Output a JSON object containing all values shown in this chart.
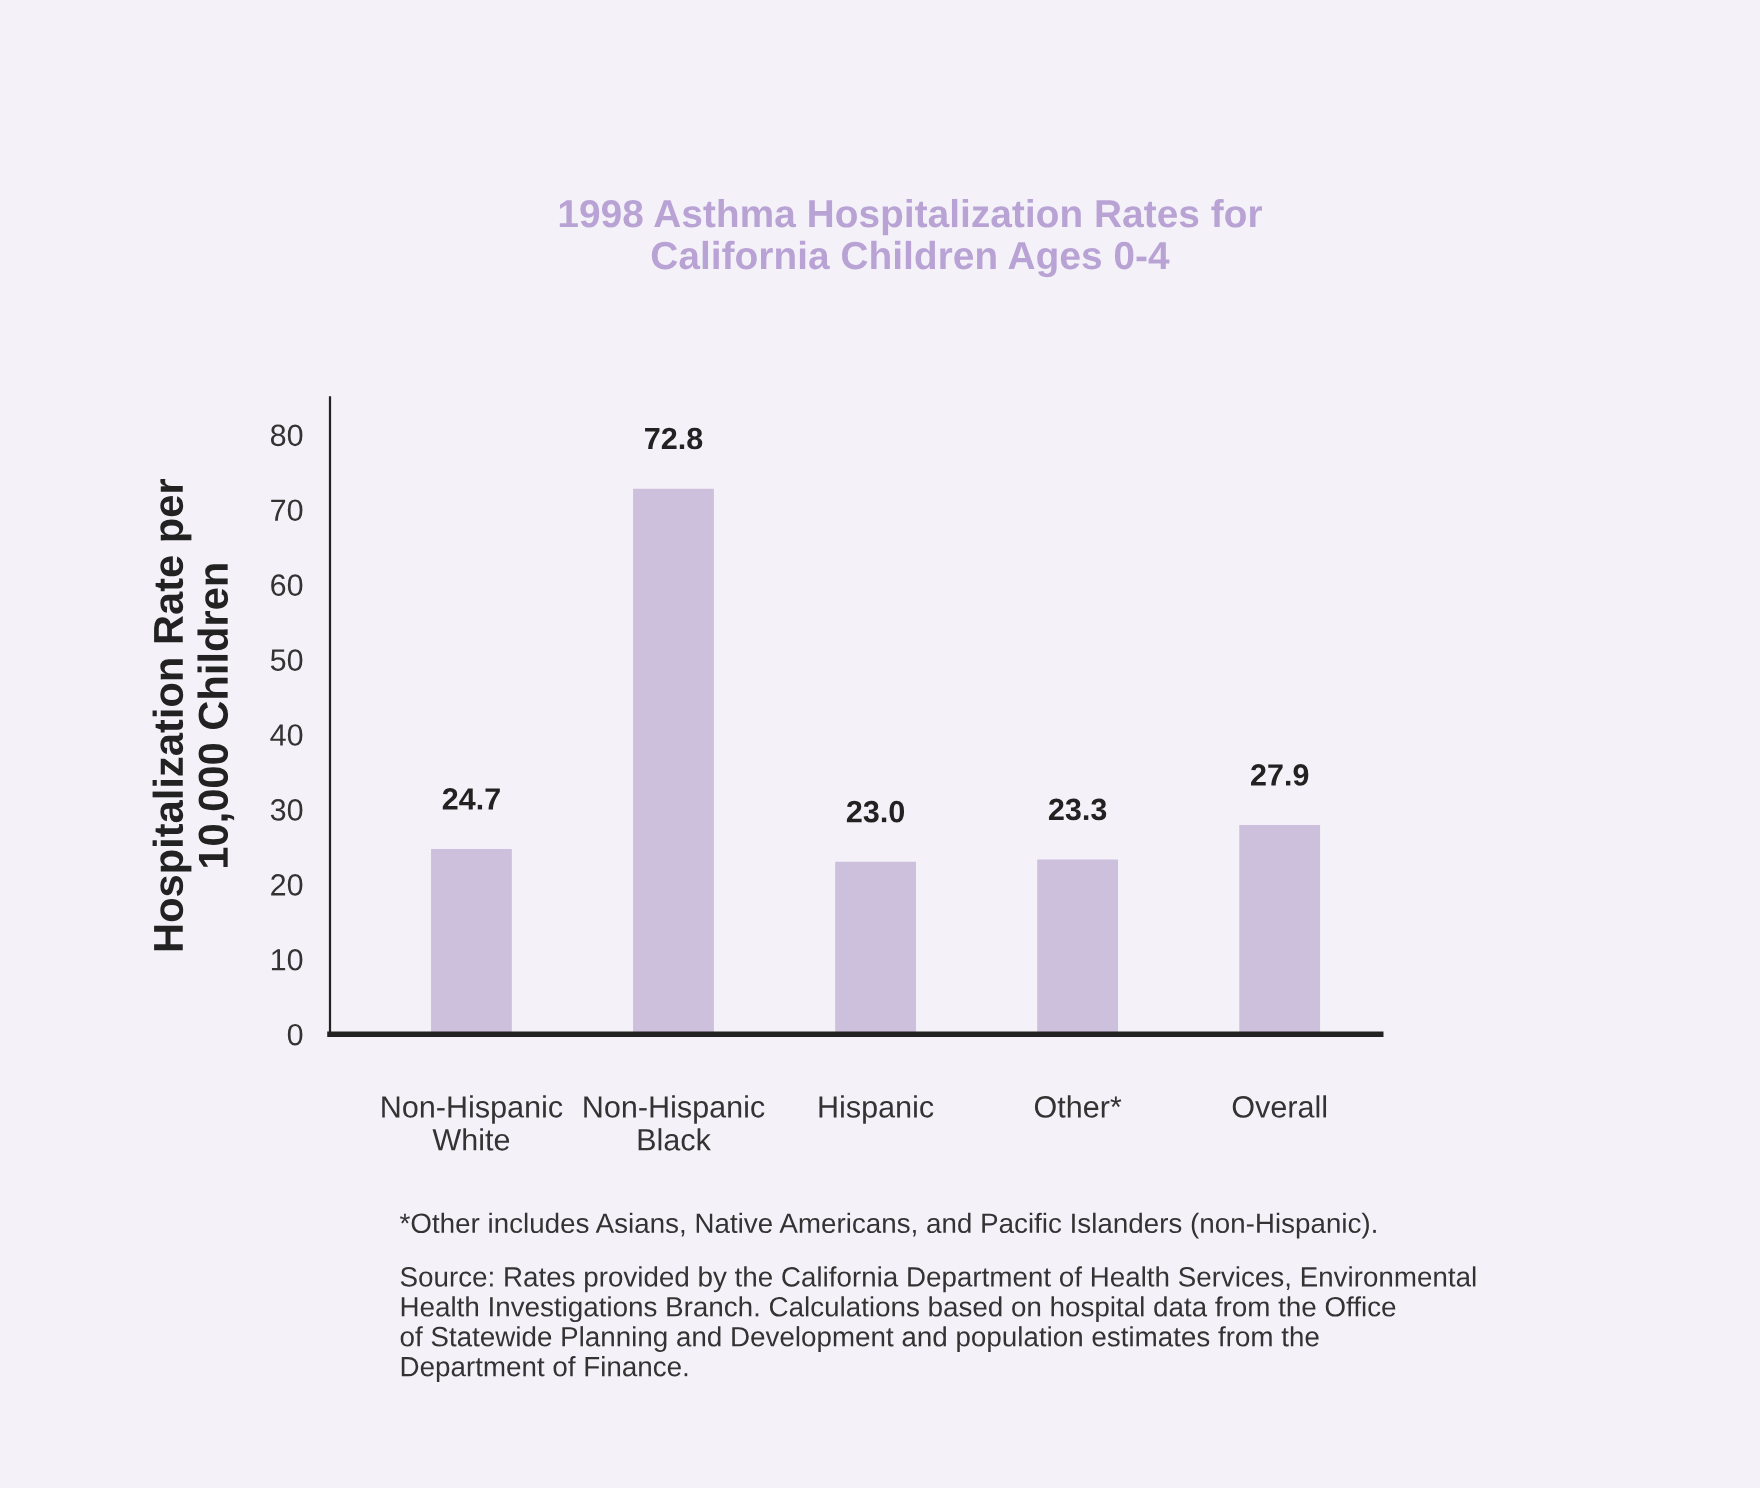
{
  "chart_data": {
    "type": "bar",
    "title": "1998 Asthma Hospitalization Rates for\nCalifornia Children Ages 0-4",
    "ylabel": "Hospitalization Rate per\n10,000 Children",
    "categories": [
      "Non-Hispanic\nWhite",
      "Non-Hispanic\nBlack",
      "Hispanic",
      "Other*",
      "Overall"
    ],
    "values": [
      24.7,
      72.8,
      23.0,
      23.3,
      27.9
    ],
    "color": "#cdc0dd",
    "ylim": [
      0,
      85
    ],
    "yticks": [
      0,
      10,
      20,
      30,
      40,
      50,
      60,
      70,
      80
    ],
    "value_labels": [
      "24.7",
      "72.8",
      "23.0",
      "23.3",
      "27.9"
    ],
    "grid": false,
    "annotations": [
      "*Other includes Asians, Native Americans, and Pacific Islanders (non-Hispanic).",
      "Source: Rates provided by the California Department of Health Services, Environmental\nHealth Investigations Branch. Calculations based on hospital data from the Office\nof Statewide Planning and Development and population estimates from the\nDepartment of Finance."
    ]
  }
}
